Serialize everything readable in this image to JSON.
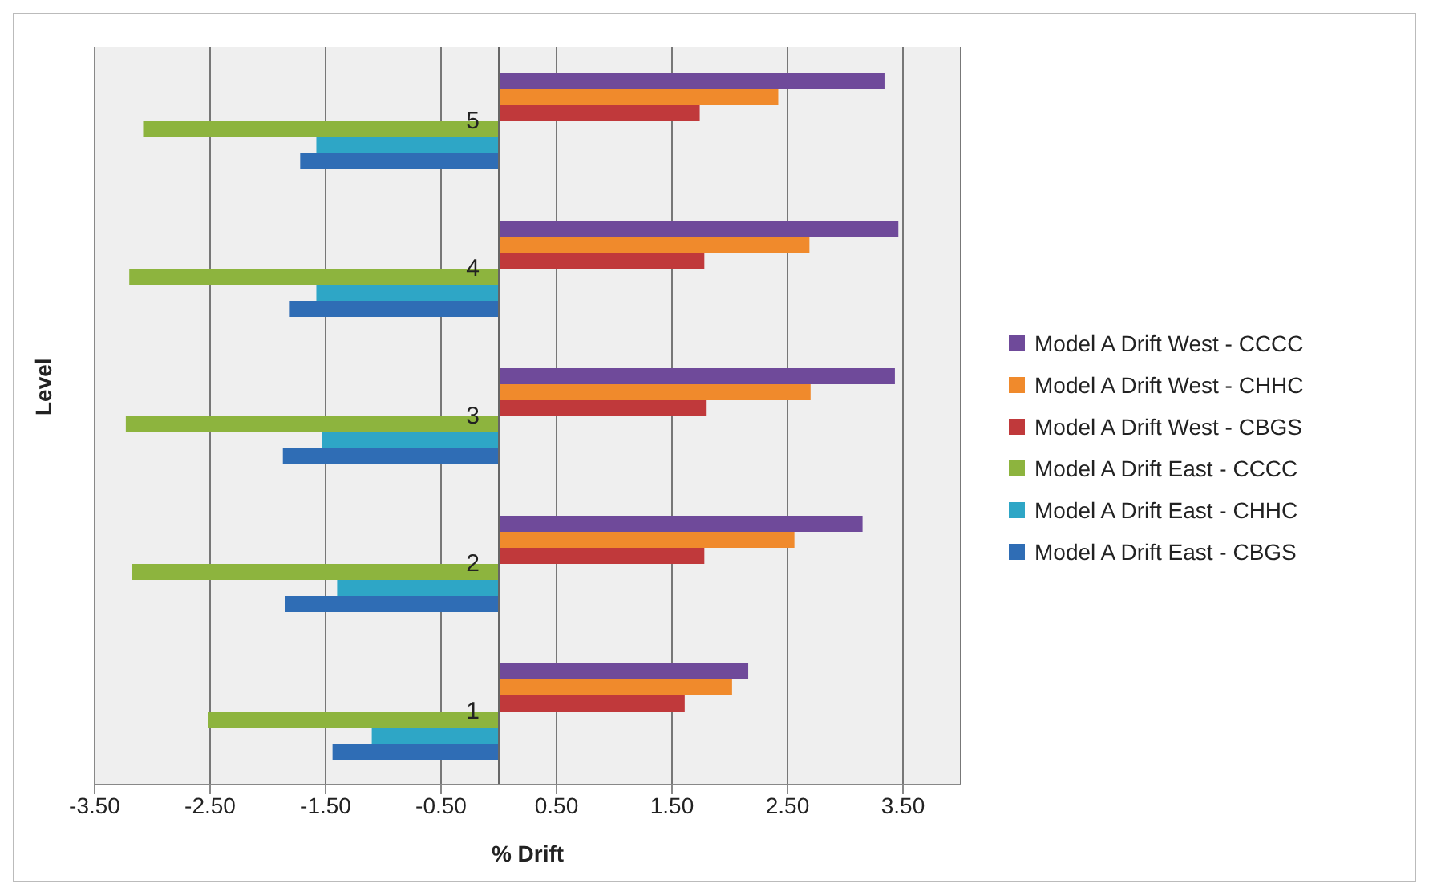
{
  "chart_data": {
    "type": "bar",
    "orientation": "horizontal",
    "xlabel": "% Drift",
    "ylabel": "Level",
    "categories": [
      "5",
      "4",
      "3",
      "2",
      "1"
    ],
    "series": [
      {
        "name": "Model A Drift West - CCCC",
        "color": "#6f4a9a",
        "values": [
          3.34,
          3.46,
          3.43,
          3.15,
          2.16
        ]
      },
      {
        "name": "Model A Drift West - CHHC",
        "color": "#f08a2c",
        "values": [
          2.42,
          2.69,
          2.7,
          2.56,
          2.02
        ]
      },
      {
        "name": "Model A Drift West - CBGS",
        "color": "#c0393b",
        "values": [
          1.74,
          1.78,
          1.8,
          1.78,
          1.61
        ]
      },
      {
        "name": "Model A Drift East - CCCC",
        "color": "#8db43e",
        "values": [
          -3.08,
          -3.2,
          -3.23,
          -3.18,
          -2.52
        ]
      },
      {
        "name": "Model A Drift East - CHHC",
        "color": "#2ea6c6",
        "values": [
          -1.58,
          -1.58,
          -1.53,
          -1.4,
          -1.1
        ]
      },
      {
        "name": "Model A Drift East - CBGS",
        "color": "#2f6db5",
        "values": [
          -1.72,
          -1.81,
          -1.87,
          -1.85,
          -1.44
        ]
      }
    ],
    "xlim": [
      -3.5,
      4.0
    ],
    "xticks": [
      {
        "value": -3.5,
        "label": "-3.50"
      },
      {
        "value": -2.5,
        "label": "-2.50"
      },
      {
        "value": -1.5,
        "label": "-1.50"
      },
      {
        "value": -0.5,
        "label": "-0.50"
      },
      {
        "value": 0.5,
        "label": "0.50"
      },
      {
        "value": 1.5,
        "label": "1.50"
      },
      {
        "value": 2.5,
        "label": "2.50"
      },
      {
        "value": 3.5,
        "label": "3.50"
      }
    ],
    "grid": "x",
    "legend": "right"
  }
}
